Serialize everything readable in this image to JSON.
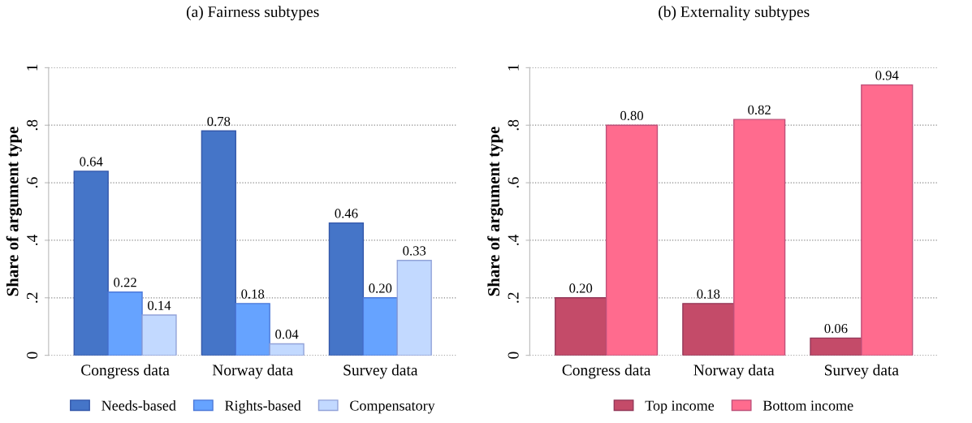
{
  "chart_data": [
    {
      "type": "bar",
      "title": "(a) Fairness subtypes",
      "ylabel": "Share of argument type",
      "categories": [
        "Congress data",
        "Norway data",
        "Survey data"
      ],
      "series": [
        {
          "name": "Needs-based",
          "color": "#4575c8",
          "values": [
            0.64,
            0.78,
            0.46
          ],
          "value_labels": [
            "0.64",
            "0.78",
            "0.46"
          ]
        },
        {
          "name": "Rights-based",
          "color": "#66a3ff",
          "values": [
            0.22,
            0.18,
            0.2
          ],
          "value_labels": [
            "0.22",
            "0.18",
            "0.20"
          ]
        },
        {
          "name": "Compensatory",
          "color": "#c2d9ff",
          "values": [
            0.14,
            0.04,
            0.33
          ],
          "value_labels": [
            "0.14",
            "0.04",
            "0.33"
          ]
        }
      ],
      "ylim": [
        0,
        1
      ],
      "yticks": [
        0,
        {
          "value": 0.2,
          "label": ".2"
        },
        {
          "value": 0.4,
          "label": ".4"
        },
        {
          "value": 0.6,
          "label": ".6"
        },
        {
          "value": 0.8,
          "label": ".8"
        },
        1
      ],
      "grid": "y",
      "legend": "bottom"
    },
    {
      "type": "bar",
      "title": "(b) Externality subtypes",
      "ylabel": "Share of argument type",
      "categories": [
        "Congress data",
        "Norway data",
        "Survey data"
      ],
      "series": [
        {
          "name": "Top income",
          "color": "#c44b69",
          "values": [
            0.2,
            0.18,
            0.06
          ],
          "value_labels": [
            "0.20",
            "0.18",
            "0.06"
          ]
        },
        {
          "name": "Bottom income",
          "color": "#ff6b8e",
          "values": [
            0.8,
            0.82,
            0.94
          ],
          "value_labels": [
            "0.80",
            "0.82",
            "0.94"
          ]
        }
      ],
      "ylim": [
        0,
        1
      ],
      "yticks": [
        0,
        {
          "value": 0.2,
          "label": ".2"
        },
        {
          "value": 0.4,
          "label": ".4"
        },
        {
          "value": 0.6,
          "label": ".6"
        },
        {
          "value": 0.8,
          "label": ".8"
        },
        1
      ],
      "grid": "y",
      "legend": "bottom"
    }
  ]
}
